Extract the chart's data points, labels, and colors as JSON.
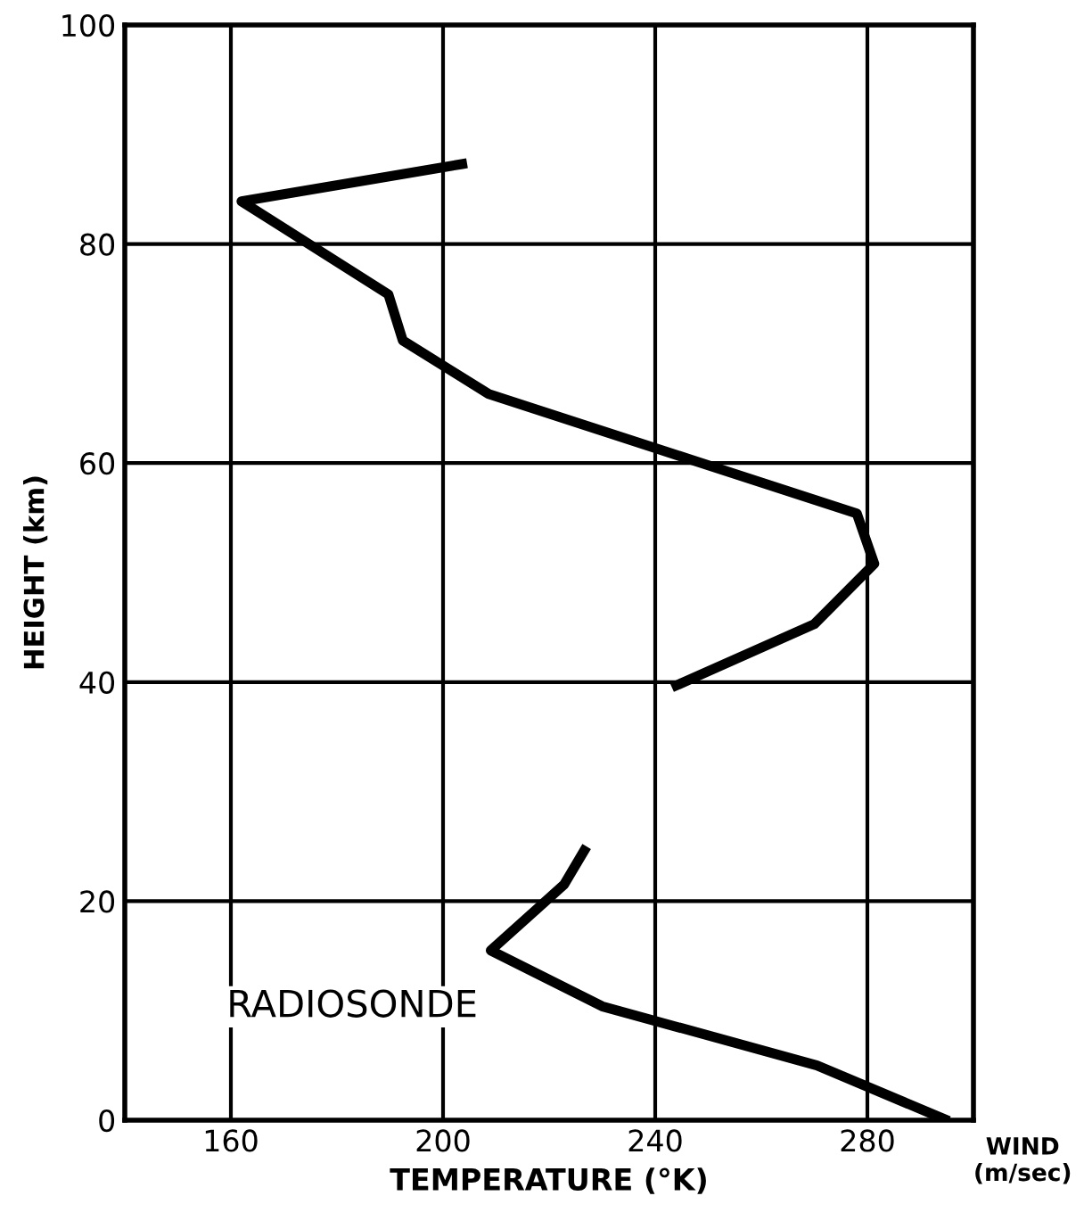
{
  "chart_data": {
    "type": "line",
    "xlabel": "TEMPERATURE (°K)",
    "ylabel": "HEIGHT (km)",
    "series": [
      {
        "color": "#000000",
        "x": [
          203.6,
          162,
          189.7,
          192.4,
          208.6,
          278,
          281.3,
          270,
          244,
          null,
          226.6,
          222.8,
          209,
          230,
          270.5,
          294.5
        ],
        "values": [
          87.3,
          83.9,
          75.4,
          71.2,
          66.3,
          55.4,
          50.8,
          45.3,
          39.7,
          null,
          24.6,
          21.5,
          15.5,
          10.4,
          5.0,
          0.1
        ]
      }
    ],
    "xlim": [
      140,
      300
    ],
    "xticks": [
      160,
      200,
      240,
      280
    ],
    "ylim": [
      0,
      100
    ],
    "yticks": [
      0,
      20,
      40,
      60,
      80,
      100
    ],
    "grid": true,
    "marker": "none",
    "line_style": "solid",
    "annotations": [
      "RADIOSONDE",
      "WIND\n(m/sec)"
    ]
  }
}
